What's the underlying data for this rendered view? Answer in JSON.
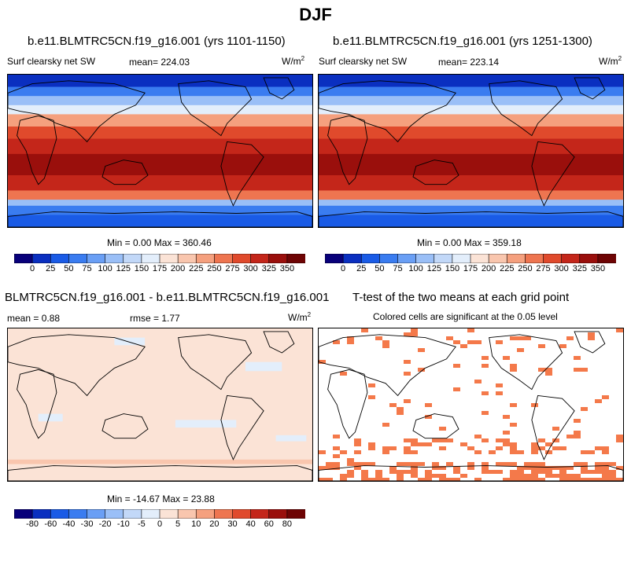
{
  "page": {
    "title": "DJF"
  },
  "panels": {
    "p1": {
      "title": "b.e11.BLMTRC5CN.f19_g16.001 (yrs 1101-1150)",
      "variable": "Surf clearsky net SW",
      "mean": "mean= 224.03",
      "units": "W/m",
      "units_sup": "2",
      "minmax": "Min =   0.00 Max = 360.46"
    },
    "p2": {
      "title": "b.e11.BLMTRC5CN.f19_g16.001 (yrs 1251-1300)",
      "variable": "Surf clearsky net SW",
      "mean": "mean= 223.14",
      "units": "W/m",
      "units_sup": "2",
      "minmax": "Min =   0.00 Max = 359.18"
    },
    "p3": {
      "title": "BLMTRC5CN.f19_g16.001 - b.e11.BLMTRC5CN.f19_g16.001",
      "mean": "mean =   0.88",
      "rmse": "rmse =   1.77",
      "units": "W/m",
      "units_sup": "2",
      "minmax": "Min = -14.67 Max =  23.88"
    },
    "p4": {
      "title": "T-test of the two means at each grid point",
      "subtitle": "Colored cells are significant at the 0.05 level"
    }
  },
  "chart_data": [
    {
      "type": "heatmap",
      "title": "b.e11.BLMTRC5CN.f19_g16.001 (yrs 1101-1150)",
      "variable": "Surf clearsky net SW",
      "mean": 224.03,
      "min": 0.0,
      "max": 360.46,
      "colorbar_levels": [
        0,
        25,
        50,
        75,
        100,
        125,
        150,
        175,
        200,
        225,
        250,
        275,
        300,
        325,
        350
      ],
      "colorbar_colors": [
        "#08007a",
        "#0a2fc0",
        "#1a5be6",
        "#3a7cf0",
        "#6a9ff5",
        "#9abff7",
        "#c2d8f8",
        "#e3eefb",
        "#fbe3d6",
        "#f9c6ae",
        "#f5a07e",
        "#ee7550",
        "#e04a2c",
        "#c4261a",
        "#9a0f0c",
        "#6e0404"
      ]
    },
    {
      "type": "heatmap",
      "title": "b.e11.BLMTRC5CN.f19_g16.001 (yrs 1251-1300)",
      "variable": "Surf clearsky net SW",
      "mean": 223.14,
      "min": 0.0,
      "max": 359.18,
      "colorbar_levels": [
        0,
        25,
        50,
        75,
        100,
        125,
        150,
        175,
        200,
        225,
        250,
        275,
        300,
        325,
        350
      ],
      "colorbar_colors": [
        "#08007a",
        "#0a2fc0",
        "#1a5be6",
        "#3a7cf0",
        "#6a9ff5",
        "#9abff7",
        "#c2d8f8",
        "#e3eefb",
        "#fbe3d6",
        "#f9c6ae",
        "#f5a07e",
        "#ee7550",
        "#e04a2c",
        "#c4261a",
        "#9a0f0c",
        "#6e0404"
      ]
    },
    {
      "type": "heatmap",
      "title": "BLMTRC5CN.f19_g16.001 - b.e11.BLMTRC5CN.f19_g16.001",
      "mean": 0.88,
      "rmse": 1.77,
      "min": -14.67,
      "max": 23.88,
      "colorbar_levels": [
        -80,
        -60,
        -40,
        -30,
        -20,
        -10,
        -5,
        0,
        5,
        10,
        20,
        30,
        40,
        60,
        80
      ],
      "colorbar_colors": [
        "#08007a",
        "#0a2fc0",
        "#1a5be6",
        "#3a7cf0",
        "#6a9ff5",
        "#9abff7",
        "#c2d8f8",
        "#e3eefb",
        "#fbe3d6",
        "#f9c6ae",
        "#f5a07e",
        "#ee7550",
        "#e04a2c",
        "#c4261a",
        "#9a0f0c",
        "#6e0404"
      ]
    },
    {
      "type": "heatmap",
      "title": "T-test of the two means at each grid point",
      "subtitle": "Colored cells are significant at the 0.05 level",
      "significant_color": "#f4794a"
    }
  ],
  "colors": {
    "ocean_blue": "#0a2fc0",
    "ocean_red": "#c4261a",
    "diff_bg": "#fbe3d6",
    "diff_neg": "#e3eefb",
    "sig": "#f4794a"
  }
}
